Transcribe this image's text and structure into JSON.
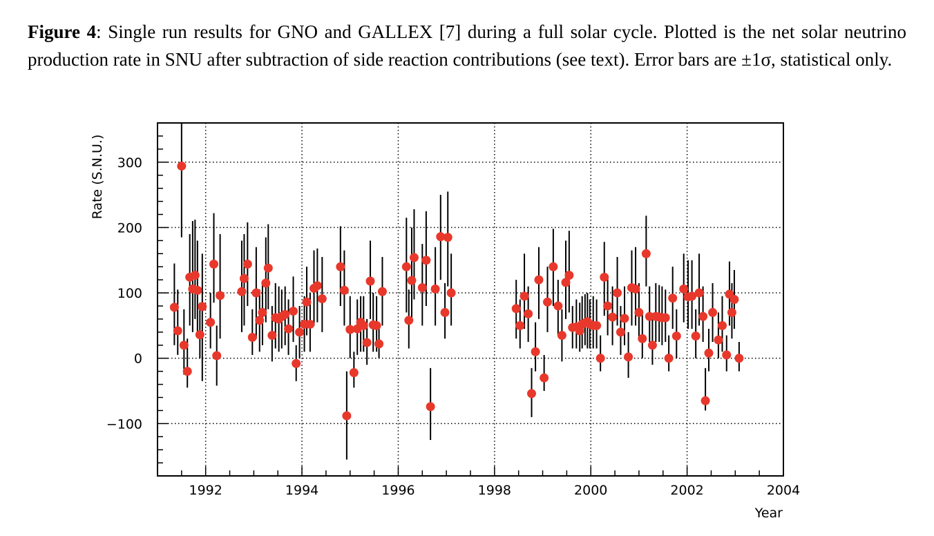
{
  "caption": {
    "label": "Figure 4",
    "text": ": Single run results for GNO and GALLEX [7] during a full solar cycle. Plotted is the net solar neutrino production rate in SNU after subtraction of side reaction contributions (see text). Error bars are ±1σ, statistical only."
  },
  "chart_data": {
    "type": "scatter",
    "xlabel": "Year",
    "ylabel": "Rate (S.N.U.)",
    "xlim": [
      1991.0,
      2004.0
    ],
    "ylim": [
      -180,
      360
    ],
    "xticks": [
      1992,
      1994,
      1996,
      1998,
      2000,
      2002,
      2004
    ],
    "yticks": [
      -100,
      0,
      100,
      200,
      300
    ],
    "grid": "dotted",
    "marker_color": "#e8382c",
    "points": [
      {
        "x": 1991.35,
        "y": 78,
        "lo": 20,
        "hi": 145
      },
      {
        "x": 1991.42,
        "y": 42,
        "lo": 5,
        "hi": 105
      },
      {
        "x": 1991.5,
        "y": 294,
        "lo": 185,
        "hi": 360
      },
      {
        "x": 1991.55,
        "y": 20,
        "lo": -25,
        "hi": 75
      },
      {
        "x": 1991.62,
        "y": -20,
        "lo": -45,
        "hi": 30
      },
      {
        "x": 1991.67,
        "y": 124,
        "lo": 50,
        "hi": 190
      },
      {
        "x": 1991.73,
        "y": 106,
        "lo": 40,
        "hi": 210
      },
      {
        "x": 1991.78,
        "y": 127,
        "lo": 60,
        "hi": 212
      },
      {
        "x": 1991.83,
        "y": 104,
        "lo": 35,
        "hi": 180
      },
      {
        "x": 1991.88,
        "y": 36,
        "lo": 0,
        "hi": 85
      },
      {
        "x": 1991.93,
        "y": 79,
        "lo": -35,
        "hi": 160
      },
      {
        "x": 1992.1,
        "y": 55,
        "lo": 15,
        "hi": 100
      },
      {
        "x": 1992.17,
        "y": 144,
        "lo": 85,
        "hi": 222
      },
      {
        "x": 1992.23,
        "y": 4,
        "lo": -42,
        "hi": 50
      },
      {
        "x": 1992.3,
        "y": 96,
        "lo": 30,
        "hi": 190
      },
      {
        "x": 1992.75,
        "y": 102,
        "lo": 40,
        "hi": 180
      },
      {
        "x": 1992.8,
        "y": 122,
        "lo": 50,
        "hi": 190
      },
      {
        "x": 1992.87,
        "y": 144,
        "lo": 80,
        "hi": 208
      },
      {
        "x": 1992.97,
        "y": 32,
        "lo": 5,
        "hi": 75
      },
      {
        "x": 1993.05,
        "y": 100,
        "lo": 30,
        "hi": 170
      },
      {
        "x": 1993.12,
        "y": 58,
        "lo": 10,
        "hi": 105
      },
      {
        "x": 1993.18,
        "y": 70,
        "lo": 20,
        "hi": 115
      },
      {
        "x": 1993.25,
        "y": 115,
        "lo": 55,
        "hi": 185
      },
      {
        "x": 1993.3,
        "y": 138,
        "lo": 75,
        "hi": 205
      },
      {
        "x": 1993.38,
        "y": 35,
        "lo": -5,
        "hi": 80
      },
      {
        "x": 1993.45,
        "y": 62,
        "lo": 15,
        "hi": 115
      },
      {
        "x": 1993.52,
        "y": 60,
        "lo": 10,
        "hi": 110
      },
      {
        "x": 1993.58,
        "y": 64,
        "lo": 15,
        "hi": 105
      },
      {
        "x": 1993.65,
        "y": 67,
        "lo": 20,
        "hi": 110
      },
      {
        "x": 1993.72,
        "y": 45,
        "lo": 5,
        "hi": 90
      },
      {
        "x": 1993.82,
        "y": 72,
        "lo": 25,
        "hi": 125
      },
      {
        "x": 1993.88,
        "y": -8,
        "lo": -35,
        "hi": 20
      },
      {
        "x": 1993.95,
        "y": 40,
        "lo": 0,
        "hi": 80
      },
      {
        "x": 1994.05,
        "y": 52,
        "lo": 10,
        "hi": 95
      },
      {
        "x": 1994.1,
        "y": 86,
        "lo": 35,
        "hi": 140
      },
      {
        "x": 1994.17,
        "y": 52,
        "lo": 10,
        "hi": 100
      },
      {
        "x": 1994.25,
        "y": 107,
        "lo": 50,
        "hi": 165
      },
      {
        "x": 1994.32,
        "y": 111,
        "lo": 55,
        "hi": 168
      },
      {
        "x": 1994.42,
        "y": 91,
        "lo": 40,
        "hi": 155
      },
      {
        "x": 1994.8,
        "y": 140,
        "lo": 80,
        "hi": 202
      },
      {
        "x": 1994.88,
        "y": 104,
        "lo": 50,
        "hi": 165
      },
      {
        "x": 1994.93,
        "y": -88,
        "lo": -155,
        "hi": -20
      },
      {
        "x": 1995.0,
        "y": 44,
        "lo": 0,
        "hi": 95
      },
      {
        "x": 1995.08,
        "y": -22,
        "lo": -45,
        "hi": 10
      },
      {
        "x": 1995.15,
        "y": 45,
        "lo": 5,
        "hi": 90
      },
      {
        "x": 1995.22,
        "y": 55,
        "lo": 10,
        "hi": 95
      },
      {
        "x": 1995.28,
        "y": 50,
        "lo": 10,
        "hi": 95
      },
      {
        "x": 1995.35,
        "y": 24,
        "lo": -10,
        "hi": 60
      },
      {
        "x": 1995.42,
        "y": 118,
        "lo": 60,
        "hi": 180
      },
      {
        "x": 1995.48,
        "y": 51,
        "lo": 10,
        "hi": 100
      },
      {
        "x": 1995.55,
        "y": 50,
        "lo": 10,
        "hi": 95
      },
      {
        "x": 1995.6,
        "y": 22,
        "lo": 0,
        "hi": 55
      },
      {
        "x": 1995.67,
        "y": 102,
        "lo": 50,
        "hi": 155
      },
      {
        "x": 1996.17,
        "y": 140,
        "lo": 70,
        "hi": 215
      },
      {
        "x": 1996.22,
        "y": 58,
        "lo": 15,
        "hi": 105
      },
      {
        "x": 1996.28,
        "y": 119,
        "lo": 60,
        "hi": 200
      },
      {
        "x": 1996.33,
        "y": 154,
        "lo": 90,
        "hi": 228
      },
      {
        "x": 1996.5,
        "y": 108,
        "lo": 50,
        "hi": 175
      },
      {
        "x": 1996.58,
        "y": 150,
        "lo": 80,
        "hi": 225
      },
      {
        "x": 1996.67,
        "y": -74,
        "lo": -125,
        "hi": -15
      },
      {
        "x": 1996.77,
        "y": 106,
        "lo": 50,
        "hi": 170
      },
      {
        "x": 1996.88,
        "y": 186,
        "lo": 120,
        "hi": 250
      },
      {
        "x": 1996.97,
        "y": 70,
        "lo": 30,
        "hi": 115
      },
      {
        "x": 1997.03,
        "y": 185,
        "lo": 110,
        "hi": 255
      },
      {
        "x": 1997.1,
        "y": 100,
        "lo": 50,
        "hi": 160
      },
      {
        "x": 1998.45,
        "y": 76,
        "lo": 30,
        "hi": 120
      },
      {
        "x": 1998.53,
        "y": 50,
        "lo": 15,
        "hi": 90
      },
      {
        "x": 1998.62,
        "y": 95,
        "lo": 45,
        "hi": 160
      },
      {
        "x": 1998.7,
        "y": 68,
        "lo": 25,
        "hi": 110
      },
      {
        "x": 1998.77,
        "y": -54,
        "lo": -90,
        "hi": -15
      },
      {
        "x": 1998.85,
        "y": 10,
        "lo": -20,
        "hi": 55
      },
      {
        "x": 1998.92,
        "y": 120,
        "lo": 60,
        "hi": 170
      },
      {
        "x": 1999.03,
        "y": -30,
        "lo": -50,
        "hi": 5
      },
      {
        "x": 1999.1,
        "y": 86,
        "lo": 40,
        "hi": 140
      },
      {
        "x": 1999.22,
        "y": 140,
        "lo": 80,
        "hi": 198
      },
      {
        "x": 1999.32,
        "y": 80,
        "lo": 35,
        "hi": 120
      },
      {
        "x": 1999.4,
        "y": 35,
        "lo": -5,
        "hi": 75
      },
      {
        "x": 1999.48,
        "y": 116,
        "lo": 60,
        "hi": 180
      },
      {
        "x": 1999.55,
        "y": 127,
        "lo": 70,
        "hi": 195
      },
      {
        "x": 1999.62,
        "y": 47,
        "lo": 15,
        "hi": 80
      },
      {
        "x": 1999.7,
        "y": 48,
        "lo": 15,
        "hi": 90
      },
      {
        "x": 1999.77,
        "y": 42,
        "lo": 10,
        "hi": 85
      },
      {
        "x": 1999.82,
        "y": 52,
        "lo": 15,
        "hi": 95
      },
      {
        "x": 1999.88,
        "y": 54,
        "lo": 20,
        "hi": 98
      },
      {
        "x": 1999.93,
        "y": 56,
        "lo": 15,
        "hi": 100
      },
      {
        "x": 1999.98,
        "y": 52,
        "lo": 15,
        "hi": 90
      },
      {
        "x": 2000.05,
        "y": 50,
        "lo": 15,
        "hi": 95
      },
      {
        "x": 2000.12,
        "y": 50,
        "lo": 15,
        "hi": 90
      },
      {
        "x": 2000.2,
        "y": 0,
        "lo": -20,
        "hi": 35
      },
      {
        "x": 2000.28,
        "y": 124,
        "lo": 65,
        "hi": 178
      },
      {
        "x": 2000.35,
        "y": 80,
        "lo": 35,
        "hi": 125
      },
      {
        "x": 2000.45,
        "y": 63,
        "lo": 20,
        "hi": 110
      },
      {
        "x": 2000.55,
        "y": 100,
        "lo": 50,
        "hi": 155
      },
      {
        "x": 2000.62,
        "y": 40,
        "lo": 5,
        "hi": 80
      },
      {
        "x": 2000.7,
        "y": 61,
        "lo": 20,
        "hi": 110
      },
      {
        "x": 2000.78,
        "y": 2,
        "lo": -30,
        "hi": 40
      },
      {
        "x": 2000.85,
        "y": 108,
        "lo": 50,
        "hi": 165
      },
      {
        "x": 2000.93,
        "y": 106,
        "lo": 50,
        "hi": 170
      },
      {
        "x": 2001.0,
        "y": 70,
        "lo": 30,
        "hi": 115
      },
      {
        "x": 2001.07,
        "y": 30,
        "lo": 0,
        "hi": 70
      },
      {
        "x": 2001.15,
        "y": 160,
        "lo": 110,
        "hi": 218
      },
      {
        "x": 2001.22,
        "y": 64,
        "lo": 25,
        "hi": 110
      },
      {
        "x": 2001.28,
        "y": 20,
        "lo": -10,
        "hi": 60
      },
      {
        "x": 2001.35,
        "y": 64,
        "lo": 25,
        "hi": 115
      },
      {
        "x": 2001.42,
        "y": 63,
        "lo": 25,
        "hi": 112
      },
      {
        "x": 2001.48,
        "y": 62,
        "lo": 20,
        "hi": 110
      },
      {
        "x": 2001.55,
        "y": 62,
        "lo": 25,
        "hi": 105
      },
      {
        "x": 2001.62,
        "y": 0,
        "lo": -20,
        "hi": 35
      },
      {
        "x": 2001.7,
        "y": 92,
        "lo": 45,
        "hi": 140
      },
      {
        "x": 2001.78,
        "y": 34,
        "lo": 0,
        "hi": 75
      },
      {
        "x": 2001.93,
        "y": 106,
        "lo": 55,
        "hi": 160
      },
      {
        "x": 2002.02,
        "y": 94,
        "lo": 45,
        "hi": 150
      },
      {
        "x": 2002.1,
        "y": 95,
        "lo": 45,
        "hi": 150
      },
      {
        "x": 2002.18,
        "y": 34,
        "lo": 0,
        "hi": 75
      },
      {
        "x": 2002.25,
        "y": 100,
        "lo": 50,
        "hi": 160
      },
      {
        "x": 2002.33,
        "y": 64,
        "lo": 25,
        "hi": 110
      },
      {
        "x": 2002.38,
        "y": -65,
        "lo": -80,
        "hi": -15
      },
      {
        "x": 2002.45,
        "y": 8,
        "lo": -20,
        "hi": 45
      },
      {
        "x": 2002.53,
        "y": 70,
        "lo": 25,
        "hi": 115
      },
      {
        "x": 2002.65,
        "y": 28,
        "lo": 0,
        "hi": 70
      },
      {
        "x": 2002.73,
        "y": 50,
        "lo": 10,
        "hi": 95
      },
      {
        "x": 2002.82,
        "y": 5,
        "lo": -20,
        "hi": 35
      },
      {
        "x": 2002.88,
        "y": 98,
        "lo": 50,
        "hi": 148
      },
      {
        "x": 2002.93,
        "y": 70,
        "lo": 30,
        "hi": 115
      },
      {
        "x": 2002.98,
        "y": 90,
        "lo": 45,
        "hi": 135
      },
      {
        "x": 2003.08,
        "y": 0,
        "lo": -20,
        "hi": 25
      }
    ]
  }
}
